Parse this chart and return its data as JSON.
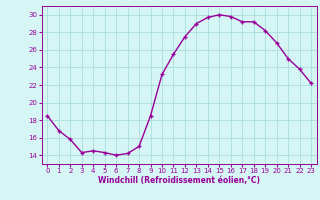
{
  "x": [
    0,
    1,
    2,
    3,
    4,
    5,
    6,
    7,
    8,
    9,
    10,
    11,
    12,
    13,
    14,
    15,
    16,
    17,
    18,
    19,
    20,
    21,
    22,
    23
  ],
  "y": [
    18.5,
    16.8,
    15.8,
    14.3,
    14.5,
    14.3,
    14.0,
    14.2,
    15.0,
    18.5,
    23.2,
    25.5,
    27.5,
    29.0,
    29.7,
    30.0,
    29.8,
    29.2,
    29.2,
    28.2,
    26.8,
    25.0,
    23.8,
    22.2
  ],
  "color": "#990099",
  "bg_color": "#d6f5f5",
  "grid_color": "#aadddd",
  "xlabel": "Windchill (Refroidissement éolien,°C)",
  "xlim": [
    -0.5,
    23.5
  ],
  "ylim": [
    13,
    31
  ],
  "yticks": [
    14,
    16,
    18,
    20,
    22,
    24,
    26,
    28,
    30
  ],
  "xticks": [
    0,
    1,
    2,
    3,
    4,
    5,
    6,
    7,
    8,
    9,
    10,
    11,
    12,
    13,
    14,
    15,
    16,
    17,
    18,
    19,
    20,
    21,
    22,
    23
  ],
  "xlabel_fontsize": 5.5,
  "tick_fontsize": 5.0,
  "line_width": 1.0,
  "marker": "+",
  "marker_size": 3.5,
  "marker_edge_width": 1.0
}
